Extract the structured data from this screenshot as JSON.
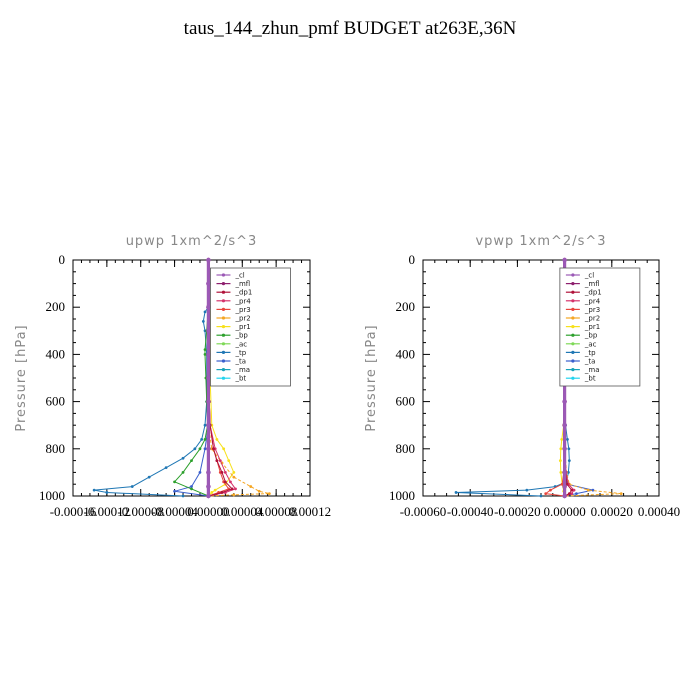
{
  "title": "taus_144_zhun_pmf  BUDGET at263E,36N",
  "colors": {
    "_cl": "#9b59b6",
    "_mfl": "#8e1f6e",
    "_dp1": "#b0123a",
    "_pr4": "#d6336c",
    "_pr3": "#e8453c",
    "_pr2": "#f5a623",
    "_pr1": "#f7e11b",
    "_bp": "#2ca02c",
    "_ac": "#7ed957",
    "_tp": "#1f77b4",
    "_ta": "#3a5fcd",
    "_ma": "#17a2b8",
    "_bt": "#22d3ee"
  },
  "legend_labels": [
    "_cl",
    "_mfl",
    "_dp1",
    "_pr4",
    "_pr3",
    "_pr2",
    "_pr1",
    "_bp",
    "_ac",
    "_tp",
    "_ta",
    "_ma",
    "_bt"
  ],
  "chart_data": [
    {
      "type": "line",
      "title": "upwp   1xm^2/s^3",
      "ylabel": "Pressure  [hPa]",
      "xlabel": "",
      "xlim": [
        -0.00016,
        0.00012
      ],
      "ylim": [
        1000,
        0
      ],
      "xtick_values": [
        -0.00016,
        -0.00012,
        -8e-05,
        -4e-05,
        0.0,
        4e-05,
        8e-05,
        0.00012
      ],
      "xtick_labels": [
        "-0.00016",
        "-0.00012",
        "-0.00008",
        "-0.00004",
        "0.00000",
        "0.00004",
        "0.00008",
        "0.00012"
      ],
      "ytick_values": [
        0,
        200,
        400,
        600,
        800,
        1000
      ],
      "ytick_labels": [
        "0",
        "200",
        "400",
        "600",
        "800",
        "1000"
      ],
      "legend_position": "top-right",
      "series": [
        {
          "name": "_cl",
          "y": [
            0,
            100,
            200,
            300,
            400,
            500,
            600,
            700,
            800,
            900,
            960,
            1000
          ],
          "x": [
            0,
            0,
            0,
            0,
            0,
            0,
            0,
            0,
            0,
            0,
            0,
            0
          ]
        },
        {
          "name": "_mfl",
          "y": [
            0,
            100,
            200,
            300,
            400,
            500,
            600,
            700,
            800,
            900,
            960,
            1000
          ],
          "x": [
            0,
            0,
            0,
            0,
            0,
            0,
            0,
            0,
            0,
            0,
            0,
            0
          ]
        },
        {
          "name": "_dp1",
          "y": [
            0,
            200,
            400,
            600,
            700,
            800,
            850,
            900,
            940,
            970,
            985,
            1000
          ],
          "x": [
            0,
            0,
            1e-06,
            1e-06,
            2e-06,
            6e-06,
            1e-05,
            1.6e-05,
            2e-05,
            2.8e-05,
            1.6e-05,
            0
          ]
        },
        {
          "name": "_pr4",
          "y": [
            0,
            200,
            400,
            600,
            700,
            800,
            850,
            900,
            940,
            970,
            985,
            1000
          ],
          "x": [
            0,
            0,
            0,
            1e-06,
            2e-06,
            8e-06,
            1.4e-05,
            2e-05,
            2.6e-05,
            3.2e-05,
            2e-05,
            0
          ]
        },
        {
          "name": "_pr3",
          "y": [
            0,
            200,
            400,
            600,
            700,
            800,
            850,
            900,
            940,
            970,
            985,
            1000
          ],
          "x": [
            0,
            0,
            0,
            1e-06,
            2e-06,
            6e-06,
            1e-05,
            1.4e-05,
            1.8e-05,
            2.4e-05,
            1.2e-05,
            0
          ]
        },
        {
          "name": "_pr2",
          "y": [
            0,
            400,
            700,
            800,
            860,
            920,
            960,
            980,
            990,
            995,
            1000
          ],
          "x": [
            0,
            0,
            0,
            4e-06,
            1.6e-05,
            3e-05,
            5e-05,
            6e-05,
            7.2e-05,
            3e-05,
            0
          ]
        },
        {
          "name": "_pr1",
          "y": [
            0,
            200,
            220,
            300,
            500,
            700,
            760,
            800,
            850,
            900,
            950,
            975,
            985,
            1000
          ],
          "x": [
            0,
            0,
            2e-06,
            2e-06,
            2e-06,
            4e-06,
            1e-05,
            1.8e-05,
            2.4e-05,
            3e-05,
            2e-05,
            8e-06,
            4e-06,
            0
          ]
        },
        {
          "name": "_bp",
          "y": [
            0,
            200,
            300,
            380,
            400,
            500,
            600,
            700,
            760,
            800,
            850,
            900,
            940,
            970,
            1000
          ],
          "x": [
            0,
            0,
            -2e-06,
            -4e-06,
            -4e-06,
            -3e-06,
            -2e-06,
            -1e-06,
            -4e-06,
            -1e-05,
            -2e-05,
            -3e-05,
            -4e-05,
            -2e-05,
            0
          ]
        },
        {
          "name": "_ac",
          "y": [
            0,
            200,
            400,
            600,
            800,
            900,
            1000
          ],
          "x": [
            0,
            0,
            0,
            0,
            0,
            0,
            0
          ]
        },
        {
          "name": "_tp",
          "y": [
            0,
            200,
            220,
            260,
            300,
            400,
            500,
            600,
            700,
            760,
            800,
            840,
            880,
            920,
            960,
            975,
            985,
            1000
          ],
          "x": [
            0,
            0,
            -4e-06,
            -6e-06,
            -4e-06,
            -2e-06,
            -2e-06,
            -2e-06,
            -4e-06,
            -8e-06,
            -1.6e-05,
            -3e-05,
            -5e-05,
            -7e-05,
            -9e-05,
            -0.000135,
            -0.00012,
            -3e-05
          ]
        },
        {
          "name": "_ta",
          "y": [
            0,
            400,
            700,
            800,
            900,
            960,
            980,
            1000
          ],
          "x": [
            0,
            0,
            0,
            -4e-06,
            -1e-05,
            -2e-05,
            -4e-05,
            0
          ]
        },
        {
          "name": "_ma",
          "y": [
            0,
            200,
            400,
            600,
            800,
            900,
            1000
          ],
          "x": [
            0,
            0,
            0,
            0,
            0,
            0,
            0
          ]
        },
        {
          "name": "_bt",
          "y": [
            0,
            200,
            400,
            600,
            800,
            900,
            1000
          ],
          "x": [
            0,
            0,
            0,
            0,
            0,
            0,
            0
          ]
        }
      ]
    },
    {
      "type": "line",
      "title": "vpwp   1xm^2/s^3",
      "ylabel": "Pressure  [hPa]",
      "xlabel": "",
      "xlim": [
        -0.0006,
        0.0004
      ],
      "ylim": [
        1000,
        0
      ],
      "xtick_values": [
        -0.0006,
        -0.0004,
        -0.0002,
        0.0,
        0.0002,
        0.0004
      ],
      "xtick_labels": [
        "-0.00060",
        "-0.00040",
        "-0.00020",
        "0.00000",
        "0.00020",
        "0.00040"
      ],
      "ytick_values": [
        0,
        200,
        400,
        600,
        800,
        1000
      ],
      "ytick_labels": [
        "0",
        "200",
        "400",
        "600",
        "800",
        "1000"
      ],
      "legend_position": "top-right",
      "series": [
        {
          "name": "_cl",
          "y": [
            0,
            100,
            200,
            300,
            400,
            500,
            600,
            700,
            800,
            900,
            960,
            1000
          ],
          "x": [
            0,
            0,
            0,
            0,
            0,
            0,
            0,
            0,
            0,
            0,
            0,
            0
          ]
        },
        {
          "name": "_mfl",
          "y": [
            0,
            100,
            200,
            300,
            400,
            500,
            600,
            700,
            800,
            900,
            960,
            1000
          ],
          "x": [
            0,
            0,
            0,
            0,
            0,
            0,
            0,
            0,
            0,
            0,
            0,
            0
          ]
        },
        {
          "name": "_dp1",
          "y": [
            0,
            400,
            800,
            900,
            950,
            975,
            990,
            1000
          ],
          "x": [
            0,
            0,
            0,
            4e-06,
            1e-05,
            3e-05,
            2e-05,
            0
          ]
        },
        {
          "name": "_pr4",
          "y": [
            0,
            400,
            800,
            900,
            950,
            975,
            990,
            1000
          ],
          "x": [
            0,
            0,
            0,
            6e-06,
            1.6e-05,
            4e-05,
            3e-05,
            0
          ]
        },
        {
          "name": "_pr3",
          "y": [
            0,
            400,
            800,
            900,
            950,
            975,
            990,
            1000
          ],
          "x": [
            0,
            0,
            0,
            -4e-06,
            -1e-05,
            -6e-05,
            -8e-05,
            0
          ]
        },
        {
          "name": "_pr2",
          "y": [
            0,
            400,
            800,
            900,
            950,
            975,
            990,
            1000
          ],
          "x": [
            0,
            0,
            0,
            8e-06,
            2e-05,
            0.0001,
            0.00024,
            0
          ]
        },
        {
          "name": "_pr1",
          "y": [
            0,
            600,
            700,
            760,
            800,
            850,
            900,
            950,
            980,
            1000
          ],
          "x": [
            0,
            0,
            -4e-06,
            -1.2e-05,
            -1.6e-05,
            -1.8e-05,
            -1.6e-05,
            -1e-05,
            -4e-06,
            0
          ]
        },
        {
          "name": "_bp",
          "y": [
            0,
            400,
            800,
            900,
            950,
            1000
          ],
          "x": [
            0,
            0,
            0,
            0,
            0,
            0
          ]
        },
        {
          "name": "_ac",
          "y": [
            0,
            400,
            800,
            900,
            950,
            1000
          ],
          "x": [
            0,
            0,
            0,
            0,
            0,
            0
          ]
        },
        {
          "name": "_tp",
          "y": [
            0,
            600,
            700,
            760,
            800,
            850,
            900,
            940,
            960,
            975,
            985,
            1000
          ],
          "x": [
            0,
            0,
            4e-06,
            1.2e-05,
            1.8e-05,
            2e-05,
            1.6e-05,
            8e-06,
            -4e-05,
            -0.00016,
            -0.00046,
            -0.0001
          ]
        },
        {
          "name": "_ta",
          "y": [
            0,
            400,
            800,
            900,
            950,
            975,
            990,
            1000
          ],
          "x": [
            0,
            0,
            0,
            4e-06,
            1e-05,
            0.00012,
            5e-05,
            0
          ]
        },
        {
          "name": "_ma",
          "y": [
            0,
            400,
            800,
            1000
          ],
          "x": [
            0,
            0,
            0,
            0
          ]
        },
        {
          "name": "_bt",
          "y": [
            0,
            400,
            800,
            1000
          ],
          "x": [
            0,
            0,
            0,
            0
          ]
        }
      ]
    }
  ]
}
